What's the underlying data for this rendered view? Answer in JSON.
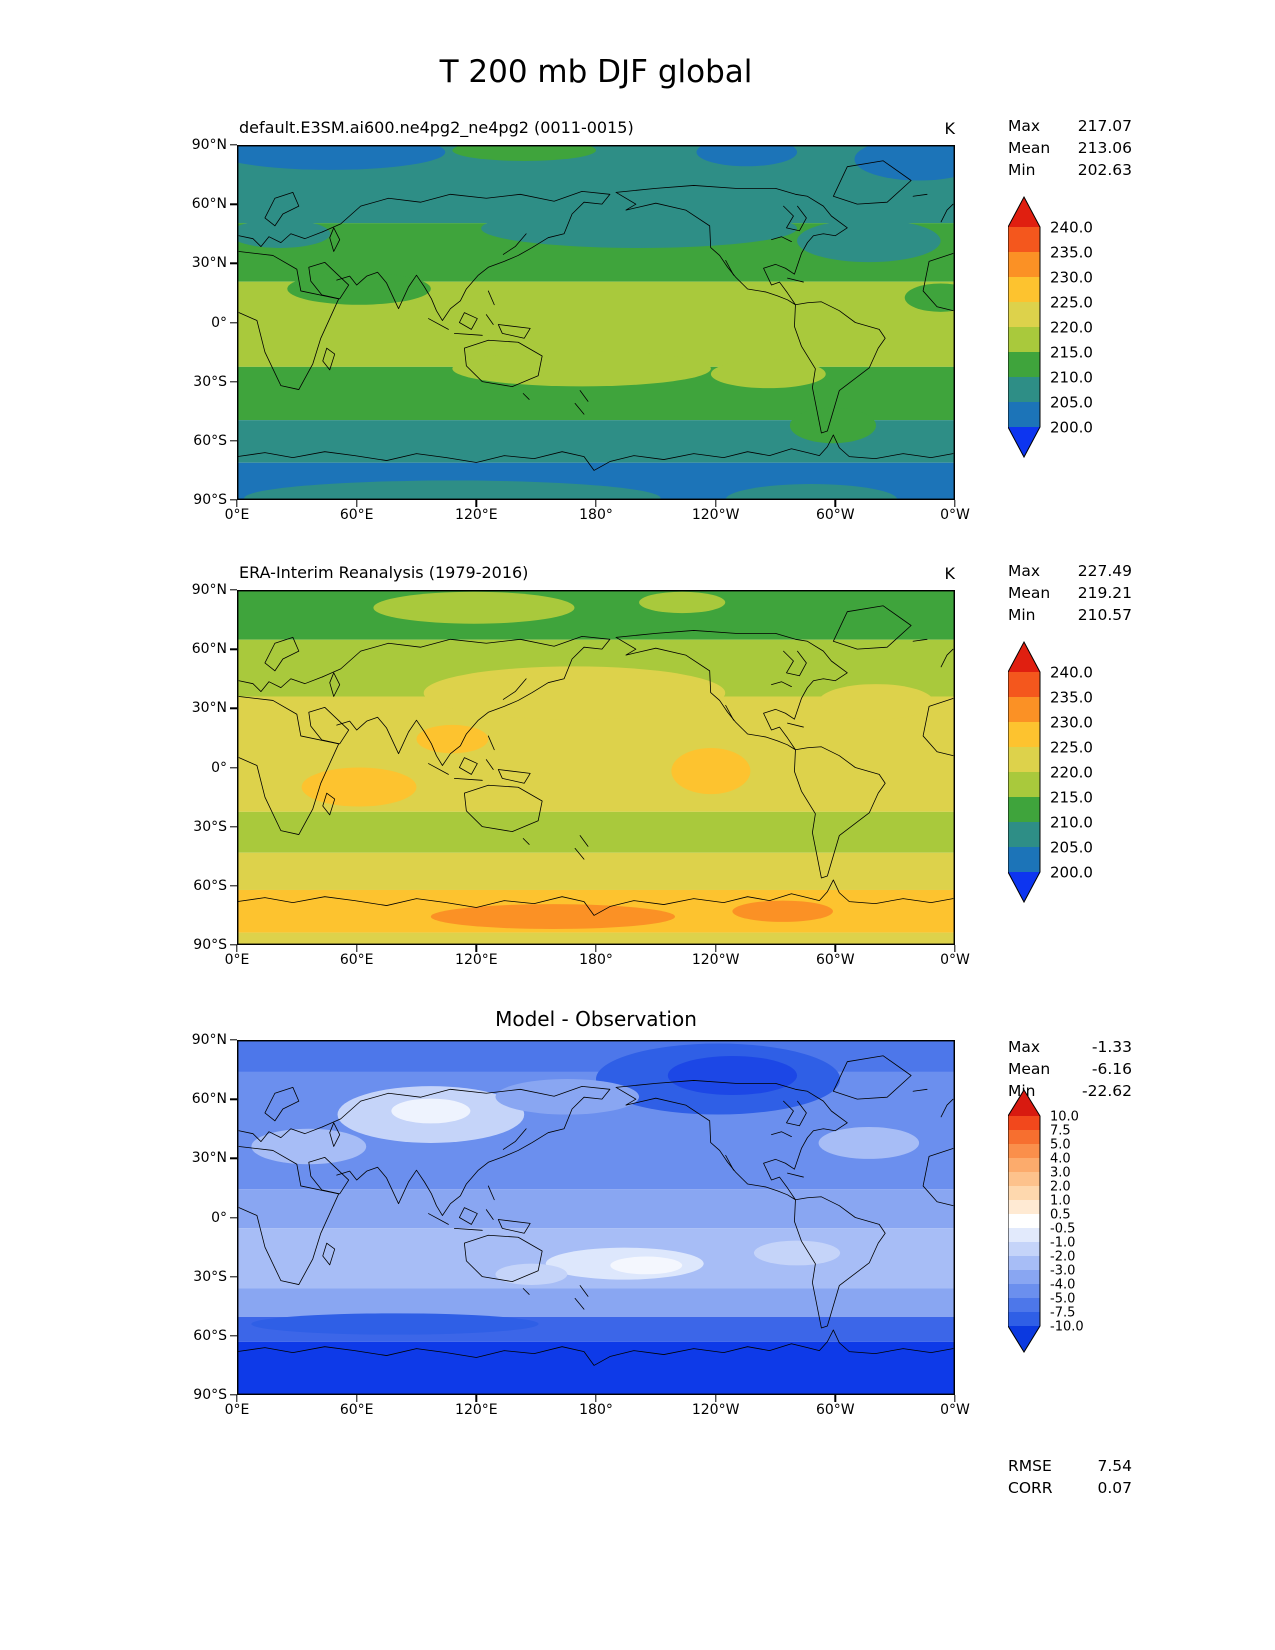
{
  "title": "T 200 mb DJF global",
  "labels": {
    "max": "Max",
    "mean": "Mean",
    "min": "Min",
    "rmse": "RMSE",
    "corr": "CORR"
  },
  "chart_data": [
    {
      "type": "heatmap",
      "title": "default.E3SM.ai600.ne4pg2_ne4pg2 (0011-0015)",
      "units": "K",
      "stats": {
        "max": "217.07",
        "mean": "213.06",
        "min": "202.63"
      },
      "x_ticks": [
        "0°E",
        "60°E",
        "120°E",
        "180°",
        "120°W",
        "60°W",
        "0°W"
      ],
      "y_ticks": [
        "90°N",
        "60°N",
        "30°N",
        "0°",
        "30°S",
        "60°S",
        "90°S"
      ],
      "colorbar": {
        "labels": [
          "240.0",
          "235.0",
          "230.0",
          "225.0",
          "220.0",
          "215.0",
          "210.0",
          "205.0",
          "200.0"
        ],
        "above": "#e01f10",
        "below": "#0d35f0",
        "cells": [
          "#f4571d",
          "#fb9125",
          "#fdc32f",
          "#ddd24b",
          "#a9c93c",
          "#3fa43c",
          "#2e8e86",
          "#1c74b8"
        ]
      },
      "field": {
        "bands": [
          [
            0.0,
            0.22,
            "#2e8e86"
          ],
          [
            0.22,
            0.385,
            "#3fa43c"
          ],
          [
            0.385,
            0.625,
            "#a9c93c"
          ],
          [
            0.625,
            0.775,
            "#3fa43c"
          ],
          [
            0.775,
            0.895,
            "#2e8e86"
          ],
          [
            0.895,
            1.0,
            "#1c74b8"
          ]
        ],
        "blobs": [
          [
            0.13,
            0.02,
            0.16,
            0.05,
            "#1c74b8"
          ],
          [
            0.71,
            0.02,
            0.07,
            0.04,
            "#1c74b8"
          ],
          [
            0.95,
            0.04,
            0.09,
            0.06,
            "#1c74b8"
          ],
          [
            0.4,
            0.015,
            0.1,
            0.03,
            "#3fa43c"
          ],
          [
            0.56,
            0.235,
            0.22,
            0.055,
            "#2e8e86"
          ],
          [
            0.88,
            0.27,
            0.1,
            0.06,
            "#2e8e86"
          ],
          [
            0.06,
            0.25,
            0.07,
            0.04,
            "#2e8e86"
          ],
          [
            0.17,
            0.405,
            0.1,
            0.045,
            "#3fa43c"
          ],
          [
            0.98,
            0.43,
            0.05,
            0.04,
            "#3fa43c"
          ],
          [
            0.48,
            0.63,
            0.18,
            0.05,
            "#a9c93c"
          ],
          [
            0.74,
            0.645,
            0.08,
            0.04,
            "#a9c93c"
          ],
          [
            0.83,
            0.79,
            0.06,
            0.05,
            "#3fa43c"
          ],
          [
            0.3,
            0.995,
            0.29,
            0.05,
            "#2e8e86"
          ],
          [
            0.8,
            1.0,
            0.12,
            0.045,
            "#2e8e86"
          ]
        ]
      }
    },
    {
      "type": "heatmap",
      "title": "ERA-Interim Reanalysis (1979-2016)",
      "units": "K",
      "stats": {
        "max": "227.49",
        "mean": "219.21",
        "min": "210.57"
      },
      "x_ticks": [
        "0°E",
        "60°E",
        "120°E",
        "180°",
        "120°W",
        "60°W",
        "0°W"
      ],
      "y_ticks": [
        "90°N",
        "60°N",
        "30°N",
        "0°",
        "30°S",
        "60°S",
        "90°S"
      ],
      "colorbar": {
        "labels": [
          "240.0",
          "235.0",
          "230.0",
          "225.0",
          "220.0",
          "215.0",
          "210.0",
          "205.0",
          "200.0"
        ],
        "above": "#e01f10",
        "below": "#0d35f0",
        "cells": [
          "#f4571d",
          "#fb9125",
          "#fdc32f",
          "#ddd24b",
          "#a9c93c",
          "#3fa43c",
          "#2e8e86",
          "#1c74b8"
        ]
      },
      "field": {
        "bands": [
          [
            0.0,
            0.14,
            "#3fa43c"
          ],
          [
            0.14,
            0.3,
            "#a9c93c"
          ],
          [
            0.3,
            0.625,
            "#ddd24b"
          ],
          [
            0.625,
            0.74,
            "#a9c93c"
          ],
          [
            0.74,
            0.845,
            "#ddd24b"
          ],
          [
            0.845,
            0.965,
            "#fdc32f"
          ],
          [
            0.965,
            1.0,
            "#ddd24b"
          ]
        ],
        "blobs": [
          [
            0.33,
            0.05,
            0.14,
            0.045,
            "#a9c93c"
          ],
          [
            0.62,
            0.035,
            0.06,
            0.03,
            "#a9c93c"
          ],
          [
            0.47,
            0.29,
            0.21,
            0.075,
            "#ddd24b"
          ],
          [
            0.89,
            0.315,
            0.08,
            0.05,
            "#ddd24b"
          ],
          [
            0.17,
            0.555,
            0.08,
            0.055,
            "#fdc32f"
          ],
          [
            0.66,
            0.51,
            0.055,
            0.065,
            "#fdc32f"
          ],
          [
            0.3,
            0.42,
            0.05,
            0.04,
            "#fdc32f"
          ],
          [
            0.44,
            0.92,
            0.17,
            0.035,
            "#fb9125"
          ],
          [
            0.76,
            0.905,
            0.07,
            0.03,
            "#fb9125"
          ]
        ]
      }
    },
    {
      "type": "heatmap",
      "title": "Model - Observation",
      "stats": {
        "max": "-1.33",
        "mean": "-6.16",
        "min": "-22.62"
      },
      "rmse": "7.54",
      "corr": "0.07",
      "x_ticks": [
        "0°E",
        "60°E",
        "120°E",
        "180°",
        "120°W",
        "60°W",
        "0°W"
      ],
      "y_ticks": [
        "90°N",
        "60°N",
        "30°N",
        "0°",
        "30°S",
        "60°S",
        "90°S"
      ],
      "colorbar": {
        "labels": [
          "10.0",
          "7.5",
          "5.0",
          "4.0",
          "3.0",
          "2.0",
          "1.0",
          "0.5",
          "-0.5",
          "-1.0",
          "-2.0",
          "-3.0",
          "-4.0",
          "-5.0",
          "-7.5",
          "-10.0"
        ],
        "above": "#d81a10",
        "below": "#0b39e0",
        "cells": [
          "#f2481c",
          "#f76f2f",
          "#fa8f4b",
          "#fcab6c",
          "#fdc28c",
          "#fed8ae",
          "#ffead3",
          "#ffffff",
          "#e2eafc",
          "#c5d4f9",
          "#a7bdf6",
          "#89a6f2",
          "#6b8fee",
          "#4d77ea",
          "#2f5fe6"
        ]
      },
      "field": {
        "bands": [
          [
            0.0,
            0.09,
            "#4d77ea"
          ],
          [
            0.09,
            0.42,
            "#6b8fee"
          ],
          [
            0.42,
            0.53,
            "#89a6f2"
          ],
          [
            0.53,
            0.7,
            "#a7bdf6"
          ],
          [
            0.7,
            0.78,
            "#89a6f2"
          ],
          [
            0.78,
            0.85,
            "#3c66e8"
          ],
          [
            0.85,
            1.0,
            "#0e3ae8"
          ]
        ],
        "blobs": [
          [
            0.67,
            0.11,
            0.17,
            0.1,
            "#2f5fe6"
          ],
          [
            0.69,
            0.1,
            0.09,
            0.055,
            "#1c47e6"
          ],
          [
            0.27,
            0.21,
            0.13,
            0.08,
            "#c5d4f9"
          ],
          [
            0.27,
            0.2,
            0.055,
            0.035,
            "#eef3fe"
          ],
          [
            0.46,
            0.16,
            0.1,
            0.05,
            "#89a6f2"
          ],
          [
            0.1,
            0.3,
            0.08,
            0.05,
            "#a7bdf6"
          ],
          [
            0.88,
            0.29,
            0.07,
            0.045,
            "#a7bdf6"
          ],
          [
            0.54,
            0.63,
            0.11,
            0.045,
            "#dde7fc"
          ],
          [
            0.57,
            0.635,
            0.05,
            0.025,
            "#f4f7fe"
          ],
          [
            0.41,
            0.66,
            0.05,
            0.03,
            "#c5d4f9"
          ],
          [
            0.78,
            0.6,
            0.06,
            0.035,
            "#c5d4f9"
          ],
          [
            0.22,
            0.8,
            0.2,
            0.03,
            "#2f5fe6"
          ]
        ]
      }
    }
  ]
}
